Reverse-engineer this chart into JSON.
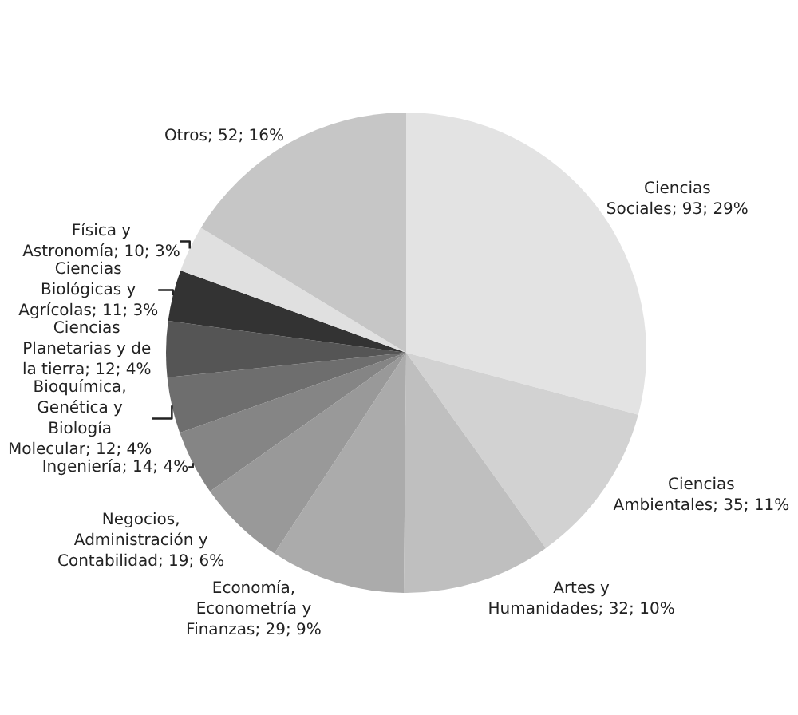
{
  "chart_data": {
    "type": "pie",
    "categories": [
      "Ciencias Sociales",
      "Ciencias Ambientales",
      "Artes y Humanidades",
      "Economía, Econometría y Finanzas",
      "Negocios, Administración y Contabilidad",
      "Ingeniería",
      "Bioquímica, Genética y Biología Molecular",
      "Ciencias Planetarias y de la tierra",
      "Ciencias Biológicas y Agrícolas",
      "Física y Astronomía",
      "Otros"
    ],
    "values": [
      93,
      35,
      32,
      29,
      19,
      14,
      12,
      12,
      11,
      10,
      52
    ],
    "value_labels": [
      "93; 29%",
      "35; 11%",
      "32; 10%",
      "29; 9%",
      "19; 6%",
      "14; 4%",
      "12; 4%",
      "12; 4%",
      "11; 3%",
      "10; 3%",
      "52; 16%"
    ],
    "colors": [
      "#e3e3e3",
      "#d2d2d2",
      "#bfbfbf",
      "#ababab",
      "#999999",
      "#858585",
      "#6e6e6e",
      "#555555",
      "#333333",
      "#e0e0e0",
      "#c6c6c6"
    ]
  }
}
